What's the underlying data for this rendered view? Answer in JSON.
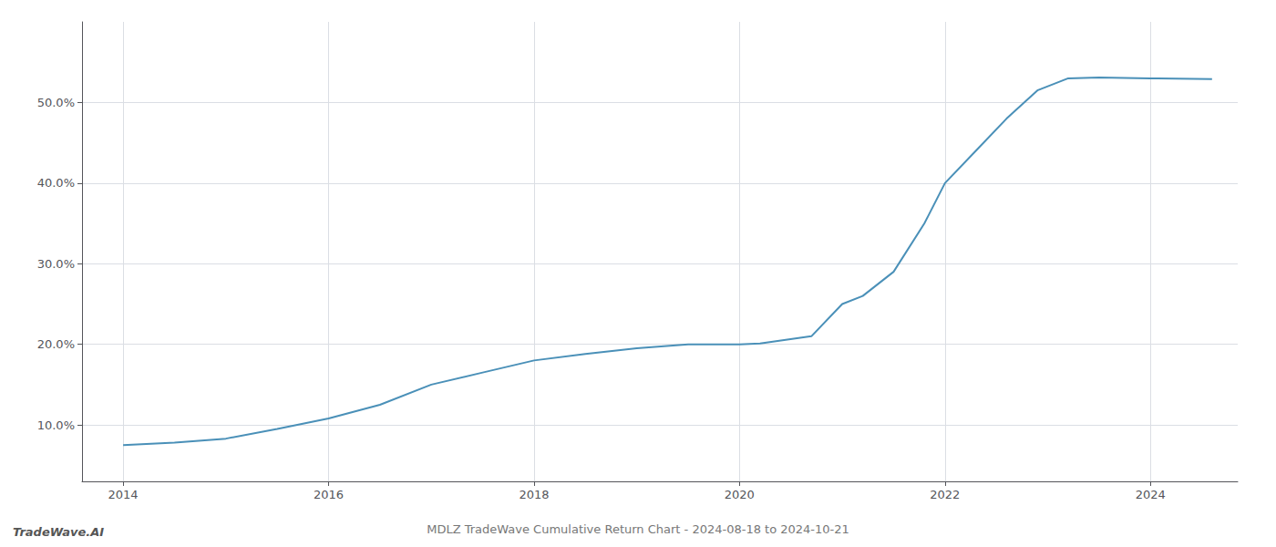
{
  "chart_data": {
    "type": "line",
    "title": "MDLZ TradeWave Cumulative Return Chart - 2024-08-18 to 2024-10-21",
    "annotations": [
      {
        "text": "TradeWave.AI"
      }
    ],
    "x": [
      2014.0,
      2014.5,
      2015.0,
      2015.5,
      2016.0,
      2016.5,
      2017.0,
      2017.5,
      2018.0,
      2018.5,
      2019.0,
      2019.5,
      2020.0,
      2020.2,
      2020.7,
      2021.0,
      2021.2,
      2021.5,
      2021.8,
      2022.0,
      2022.3,
      2022.6,
      2022.9,
      2023.2,
      2023.5,
      2024.0,
      2024.6
    ],
    "values": [
      7.5,
      7.8,
      8.3,
      9.5,
      10.8,
      12.5,
      15.0,
      16.5,
      18.0,
      18.8,
      19.5,
      20.0,
      20.0,
      20.1,
      21.0,
      25.0,
      26.0,
      29.0,
      35.0,
      40.0,
      44.0,
      48.0,
      51.5,
      53.0,
      53.1,
      53.0,
      52.9
    ],
    "color": "#4a90b8",
    "xlim": [
      2013.6,
      2024.85
    ],
    "ylim": [
      3,
      60
    ],
    "xticks": [
      2014,
      2016,
      2018,
      2020,
      2022,
      2024
    ],
    "yticks": [
      {
        "value": 10,
        "label": "10.0%"
      },
      {
        "value": 20,
        "label": "20.0%"
      },
      {
        "value": 30,
        "label": "30.0%"
      },
      {
        "value": 40,
        "label": "40.0%"
      },
      {
        "value": 50,
        "label": "50.0%"
      }
    ],
    "grid": true
  }
}
